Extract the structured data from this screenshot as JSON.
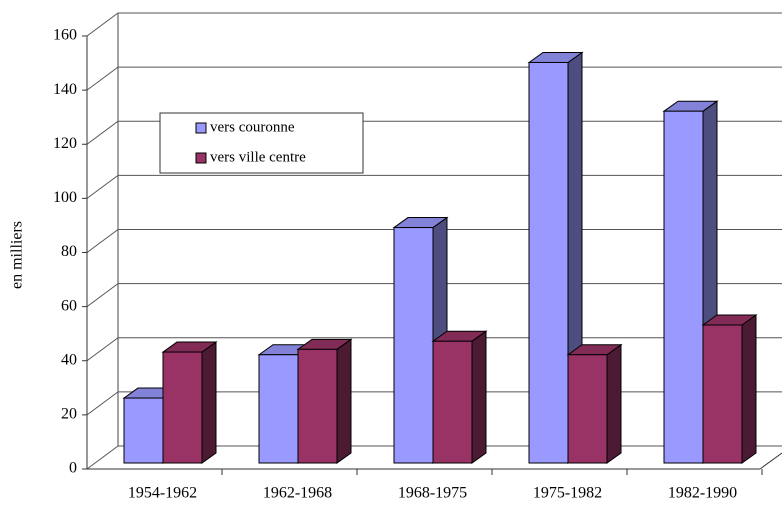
{
  "chart_data": {
    "type": "bar3d",
    "ylabel": "en milliers",
    "categories": [
      "1954-1962",
      "1962-1968",
      "1968-1975",
      "1975-1982",
      "1982-1990"
    ],
    "series": [
      {
        "name": "vers couronne",
        "color": "#9999ff",
        "values": [
          24,
          40,
          87,
          148,
          130
        ]
      },
      {
        "name": "vers ville centre",
        "color": "#993366",
        "values": [
          41,
          42,
          45,
          40,
          51
        ]
      }
    ],
    "ylim": [
      0,
      160
    ],
    "yticks": [
      0,
      20,
      40,
      60,
      80,
      100,
      120,
      140,
      160
    ],
    "grid": true
  }
}
